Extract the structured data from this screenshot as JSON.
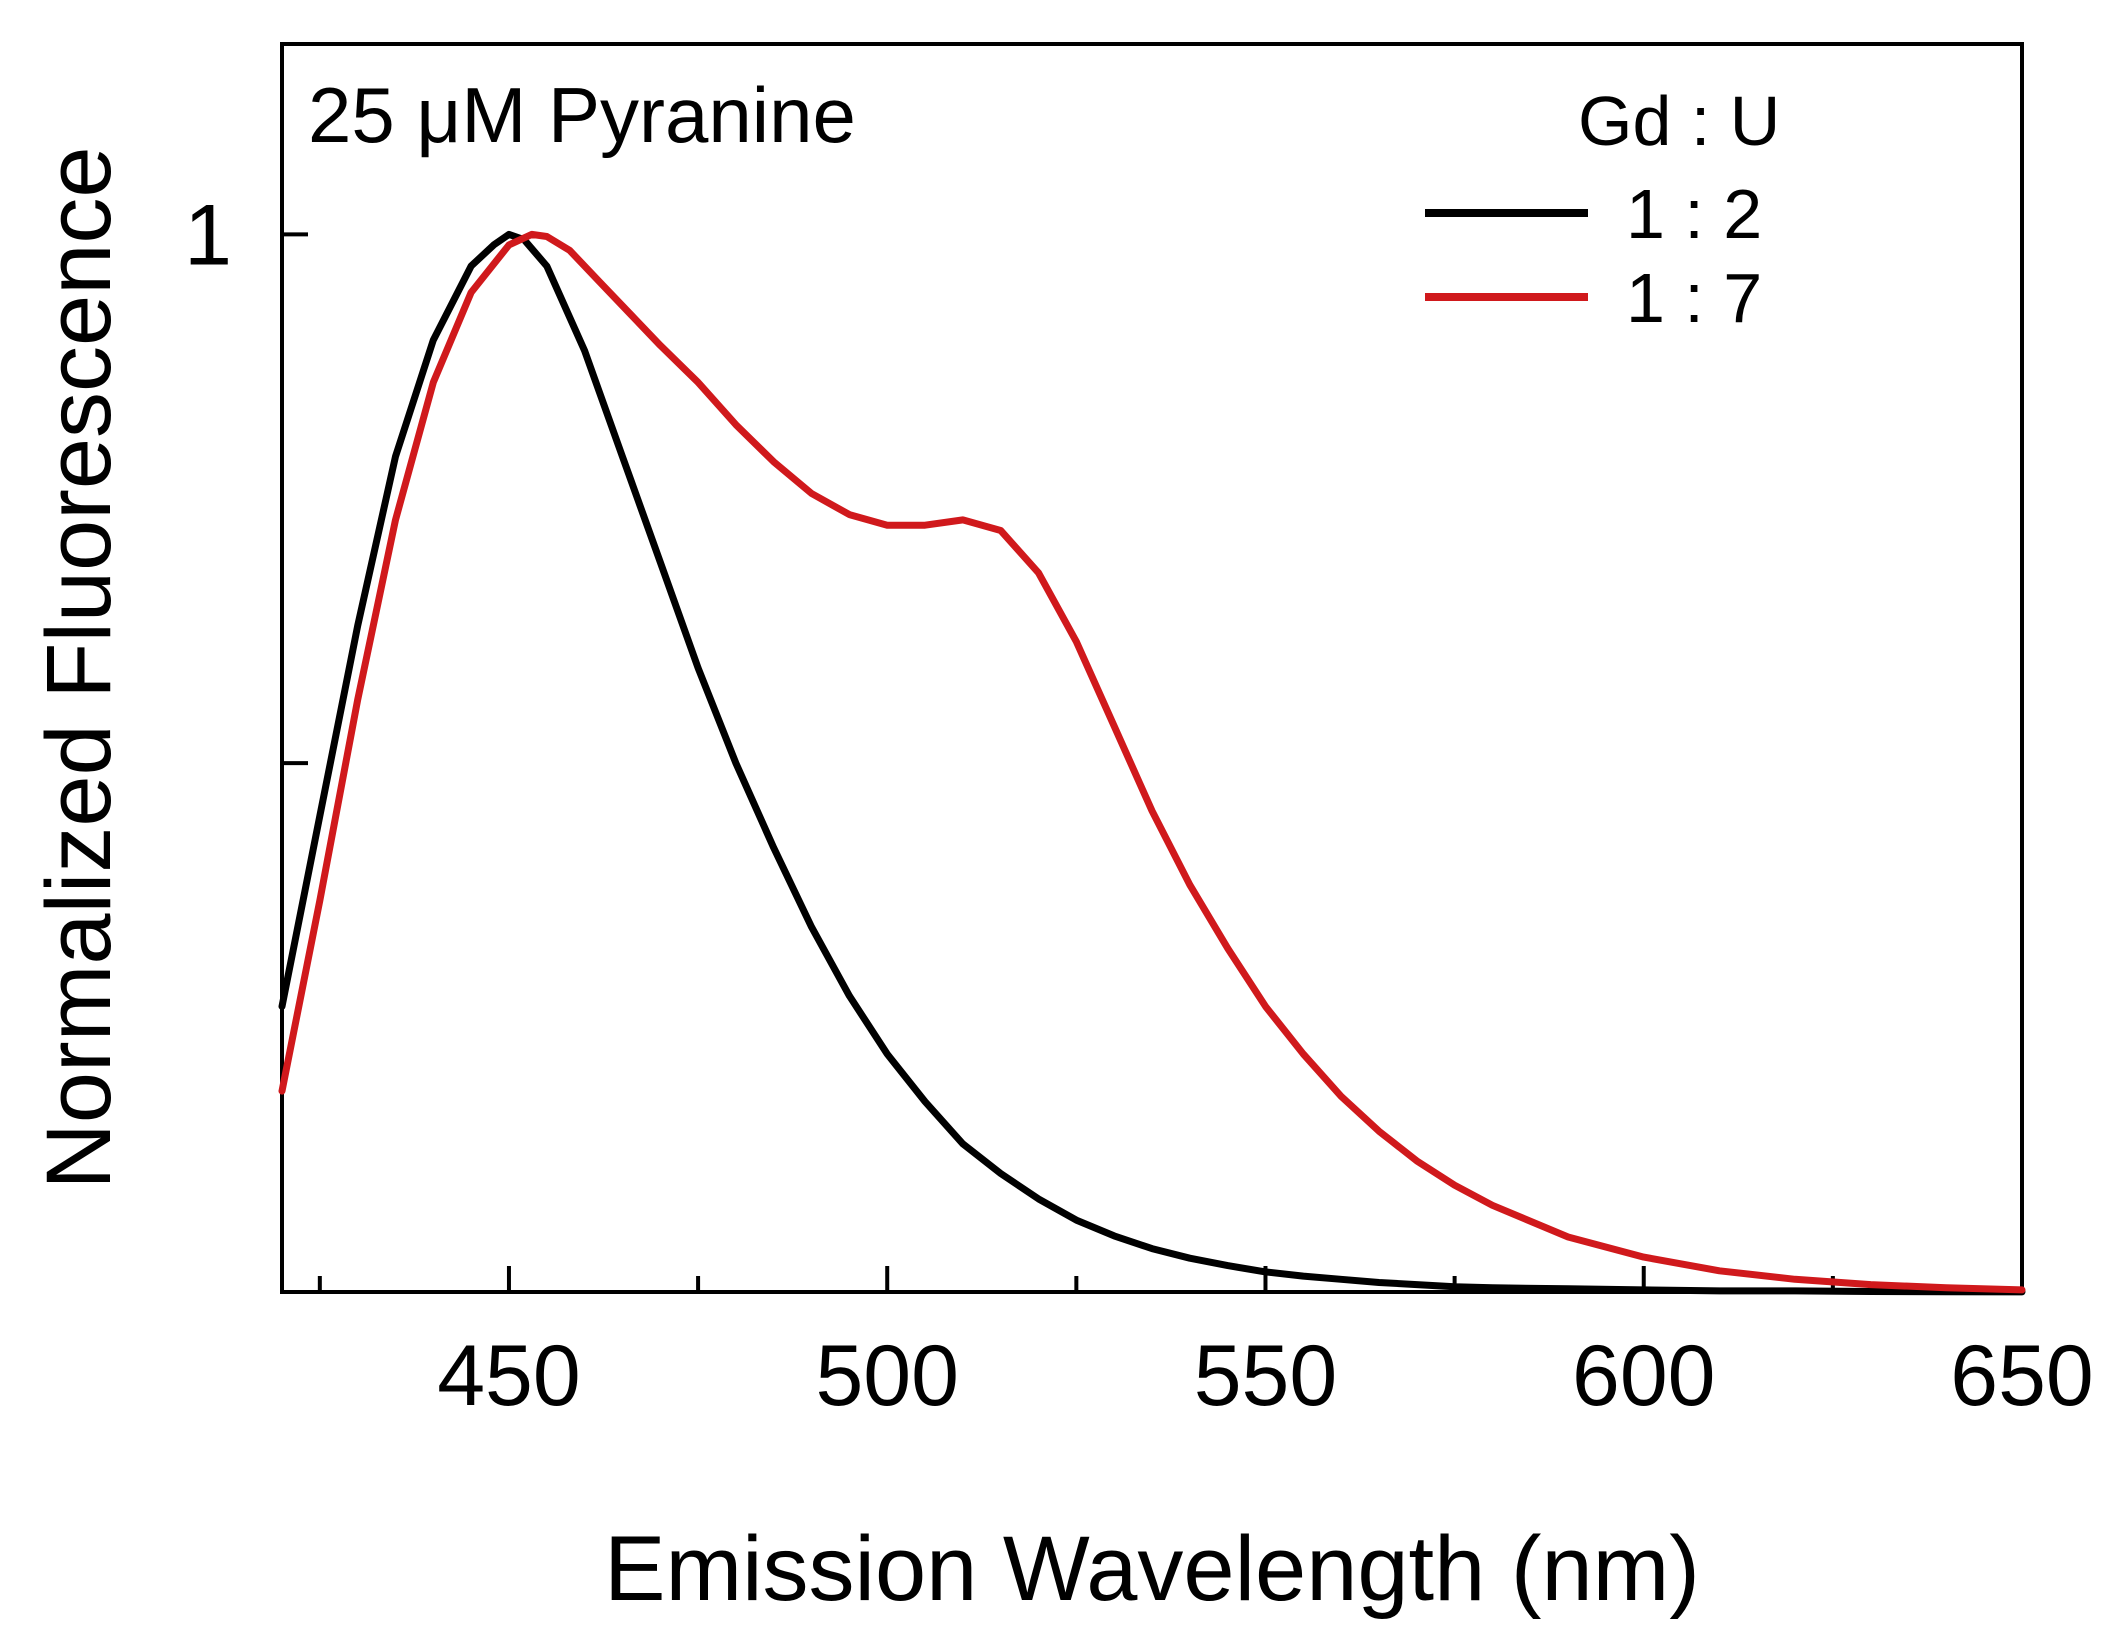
{
  "chart_data": {
    "type": "line",
    "title": "",
    "xlabel": "Emission Wavelength (nm)",
    "ylabel": "Normalized Fluorescence",
    "annotation": "25 μM Pyranine",
    "legend_title": "Gd : U",
    "legend_position": "top-right",
    "xlim": [
      420,
      650
    ],
    "ylim": [
      0,
      1.18
    ],
    "x_ticks": [
      450,
      500,
      550,
      600,
      650
    ],
    "x_minor_ticks": [
      425,
      475,
      525,
      575,
      625
    ],
    "x_tick_labels": [
      "450",
      "500",
      "550",
      "600",
      "650"
    ],
    "y_ticks": [
      0.5,
      1
    ],
    "y_tick_labels": [
      "",
      "1"
    ],
    "grid": false,
    "series": [
      {
        "name": "1 : 2",
        "color": "#000000",
        "x": [
          420,
          425,
          430,
          435,
          440,
          445,
          448,
          450,
          452,
          455,
          460,
          465,
          470,
          475,
          480,
          485,
          490,
          495,
          500,
          505,
          510,
          515,
          520,
          525,
          530,
          535,
          540,
          545,
          550,
          555,
          560,
          565,
          570,
          575,
          580,
          590,
          600,
          610,
          620,
          630,
          640,
          650
        ],
        "y": [
          0.27,
          0.45,
          0.63,
          0.79,
          0.9,
          0.97,
          0.99,
          1.0,
          0.995,
          0.97,
          0.89,
          0.79,
          0.69,
          0.59,
          0.5,
          0.42,
          0.345,
          0.28,
          0.225,
          0.18,
          0.14,
          0.112,
          0.088,
          0.068,
          0.053,
          0.041,
          0.032,
          0.025,
          0.019,
          0.015,
          0.012,
          0.009,
          0.007,
          0.005,
          0.004,
          0.003,
          0.002,
          0.001,
          0.001,
          0.0005,
          0.0002,
          0.0001
        ]
      },
      {
        "name": "1 : 7",
        "color": "#d0191c",
        "x": [
          420,
          425,
          430,
          435,
          440,
          445,
          450,
          453,
          455,
          458,
          462,
          466,
          470,
          475,
          480,
          485,
          490,
          495,
          500,
          505,
          510,
          515,
          520,
          525,
          530,
          535,
          540,
          545,
          550,
          555,
          560,
          565,
          570,
          575,
          580,
          590,
          600,
          610,
          620,
          630,
          640,
          650
        ],
        "y": [
          0.19,
          0.37,
          0.56,
          0.73,
          0.86,
          0.945,
          0.99,
          1.0,
          0.998,
          0.985,
          0.955,
          0.925,
          0.895,
          0.86,
          0.82,
          0.785,
          0.755,
          0.735,
          0.725,
          0.725,
          0.73,
          0.72,
          0.68,
          0.615,
          0.535,
          0.455,
          0.385,
          0.325,
          0.27,
          0.225,
          0.185,
          0.152,
          0.124,
          0.101,
          0.082,
          0.052,
          0.033,
          0.02,
          0.012,
          0.007,
          0.004,
          0.002
        ]
      }
    ]
  }
}
